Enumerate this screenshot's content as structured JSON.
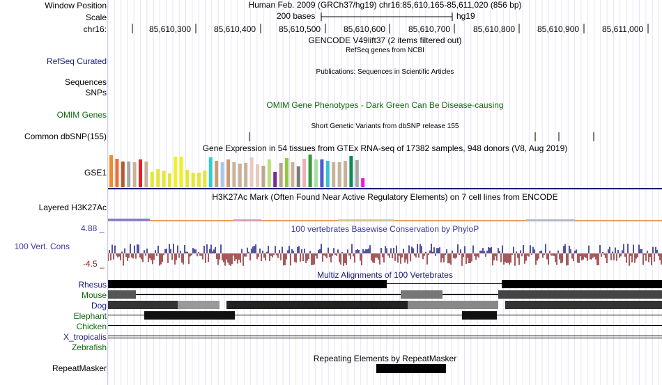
{
  "header": {
    "window_position_label": "Window Position",
    "scale_label": "Scale",
    "chrom_label": "chr16:",
    "assembly_position": "Human Feb. 2009 (GRCh37/hg19)   chr16:85,610,165-85,611,020 (856 bp)",
    "scale_text": "200 bases",
    "scale_assembly": "hg19",
    "ruler_ticks": [
      "85,610,300",
      "85,610,400",
      "85,610,500",
      "85,610,600",
      "85,610,700",
      "85,610,800",
      "85,610,900",
      "85,611,000"
    ]
  },
  "tracks": {
    "gencode": {
      "caption": "GENCODE V49lift37 (2 items filtered out)"
    },
    "refseq": {
      "label": "RefSeq Curated",
      "caption": "RefSeq genes from NCBI"
    },
    "publications": {
      "caption": "Publications: Sequences in Scientific Articles"
    },
    "sequences": {
      "label": "Sequences"
    },
    "snps": {
      "label": "SNPs"
    },
    "omim": {
      "label": "OMIM Genes",
      "caption": "OMIM Gene Phenotypes - Dark Green Can Be Disease-causing"
    },
    "dbsnp": {
      "label": "Common dbSNP(155)",
      "caption": "Short Genetic Variants from dbSNP release 155"
    },
    "gtex": {
      "label": "GSE1",
      "caption": "Gene Expression in 54 tissues from GTEx RNA-seq of 17382 samples, 948 donors (V8, Aug 2019)"
    },
    "h3k27ac": {
      "label": "Layered H3K27Ac",
      "caption": "H3K27Ac Mark (Often Found Near Active Regulatory Elements) on 7 cell lines from ENCODE"
    },
    "phylop": {
      "label": "100 Vert. Cons",
      "caption": "100 vertebrates Basewise Conservation by PhyloP",
      "max_label": "4.88 _",
      "min_label": "-4.5 _"
    },
    "multiz": {
      "caption": "Multiz Alignments of 100 Vertebrates",
      "species": [
        "Rhesus",
        "Mouse",
        "Dog",
        "Elephant",
        "Chicken",
        "X_tropicalis",
        "Zebrafish"
      ]
    },
    "repeatmasker": {
      "label": "RepeatMasker",
      "caption": "Repeating Elements by RepeatMasker"
    }
  },
  "colors": {
    "gtex_bars": [
      "#f08b2a",
      "#ee6f3a",
      "#b55a2a",
      "#a7a7a7",
      "#c9b199",
      "#e82222",
      "#c9b199",
      "#e6e638",
      "#e6e638",
      "#e6e638",
      "#e6e638",
      "#f0f02a",
      "#f0f02a",
      "#e6e638",
      "#e6e638",
      "#e6e638",
      "#e6e638",
      "#2ad0d0",
      "#cb9b73",
      "#a9c7e6",
      "#cb9b73",
      "#c9b199",
      "#c9b199",
      "#c9b199",
      "#e9c9c0",
      "#e9c9c0",
      "#bca78f",
      "#b7e07a",
      "#7a2a9a",
      "#b9a58b",
      "#94c93b",
      "#c9b199",
      "#7a7a7a",
      "#f0b0b8",
      "#3a9a3a",
      "#a3e3a3",
      "#4a5ad0",
      "#3ac0d0",
      "#c9b199",
      "#c9b199",
      "#c9b199",
      "#0f8a5a",
      "#a7a7a7",
      "#e81bd8"
    ],
    "gtex_axis": "#1a1a7a",
    "phylop_pos": "#1a1a7a",
    "phylop_neg": "#8b2323"
  },
  "chart_data": [
    {
      "type": "bar",
      "title": "Gene Expression in 54 tissues from GTEx RNA-seq of 17382 samples, 948 donors (V8, Aug 2019)",
      "values": [
        46,
        41,
        37,
        37,
        36,
        40,
        37,
        22,
        26,
        24,
        20,
        44,
        44,
        25,
        21,
        21,
        24,
        43,
        38,
        36,
        40,
        36,
        34,
        35,
        43,
        33,
        31,
        40,
        22,
        35,
        42,
        36,
        30,
        41,
        47,
        40,
        40,
        38,
        36,
        36,
        38,
        45,
        39,
        13
      ]
    }
  ]
}
